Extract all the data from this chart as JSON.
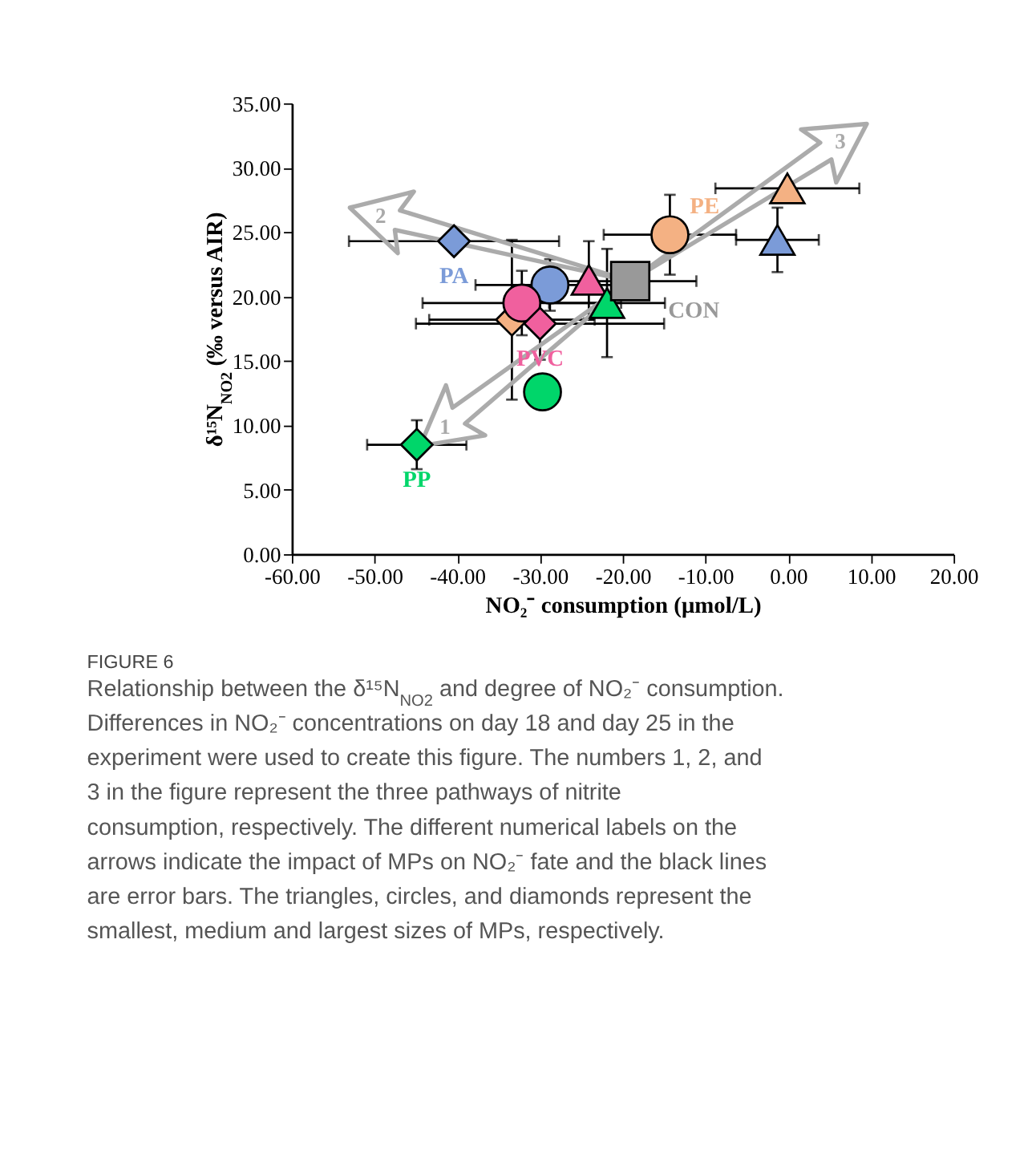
{
  "chart_data": {
    "type": "scatter",
    "xlabel": "NO₂⁻ consumption (μmol/L)",
    "ylabel": "δ¹⁵N$_{NO2}$ (‰ versus AIR)",
    "title": "FIGURE 6",
    "annotations": [
      "1",
      "2",
      "3",
      "Relationship between the δ¹⁵N$_{NO2}$ and degree of NO₂⁻ consumption. Differences in NO₂⁻ concentrations on day 18 and day 25 in the experiment were used to create this figure. The numbers 1, 2, and 3 in the figure represent the three pathways of nitrite consumption, respectively. The different numerical labels on the arrows indicate the impact of MPs on NO₂⁻ fate and the black lines are error bars. The triangles, circles, and diamonds represent the smallest, medium and largest sizes of MPs, respectively."
    ],
    "xlim": [
      -60,
      20
    ],
    "xticks": [
      {
        "value": -60,
        "label": "-60.00"
      },
      {
        "value": -50,
        "label": "-50.00"
      },
      {
        "value": -40,
        "label": "-40.00"
      },
      {
        "value": -30,
        "label": "-30.00"
      },
      {
        "value": -20,
        "label": "-20.00"
      },
      {
        "value": -10,
        "label": "-10.00"
      },
      {
        "value": 0,
        "label": "0.00"
      },
      {
        "value": 10,
        "label": "10.00"
      },
      {
        "value": 20,
        "label": "20.00"
      }
    ],
    "ylim": [
      0,
      35
    ],
    "yticks": [
      {
        "value": 0,
        "label": "0.00"
      },
      {
        "value": 5,
        "label": "5.00"
      },
      {
        "value": 10,
        "label": "10.00"
      },
      {
        "value": 15,
        "label": "15.00"
      },
      {
        "value": 20,
        "label": "20.00"
      },
      {
        "value": 25,
        "label": "25.00"
      },
      {
        "value": 30,
        "label": "30.00"
      },
      {
        "value": 35,
        "label": "35.00"
      }
    ],
    "grid": false,
    "legend": false,
    "series": [
      {
        "name": "PA",
        "color": "#7b9bd8",
        "marker": "diamond",
        "x": [
          -40.4
        ],
        "values": [
          24.3
        ],
        "xerrors": [
          12.7
        ]
      },
      {
        "color": "#7b9bd8",
        "marker": "circle",
        "x": [
          -28.8
        ],
        "values": [
          20.9
        ],
        "xerrors": [
          9
        ],
        "errors": [
          2
        ]
      },
      {
        "color": "#7b9bd8",
        "marker": "triangle",
        "x": [
          -1.3
        ],
        "values": [
          24.4
        ],
        "xerrors": [
          5
        ],
        "errors": [
          2.5
        ]
      },
      {
        "name": "PE",
        "color": "#f4b183",
        "marker": "circle",
        "x": [
          -14.3
        ],
        "values": [
          24.8
        ],
        "xerrors": [
          8
        ],
        "errors": [
          3.1
        ]
      },
      {
        "color": "#f4b183",
        "marker": "triangle",
        "x": [
          -0.1
        ],
        "values": [
          28.4
        ],
        "xerrors": [
          8.7
        ]
      },
      {
        "color": "#f4b183",
        "marker": "diamond",
        "x": [
          -33.4
        ],
        "values": [
          18.2
        ],
        "xerrors": [
          10
        ],
        "errors": [
          6.2
        ]
      },
      {
        "color": "#f0609e",
        "marker": "triangle",
        "x": [
          -24.1
        ],
        "values": [
          21.3
        ],
        "errors": [
          3
        ]
      },
      {
        "color": "#f0609e",
        "marker": "circle",
        "x": [
          -32.2
        ],
        "values": [
          19.5
        ],
        "xerrors": [
          12
        ],
        "errors": [
          2.5
        ]
      },
      {
        "name": "PVC",
        "color": "#f0609e",
        "marker": "diamond",
        "x": [
          -30
        ],
        "values": [
          17.9
        ],
        "xerrors": [
          15
        ],
        "errors": [
          2.8
        ]
      },
      {
        "color": "#00d66a",
        "marker": "triangle",
        "x": [
          -21.9
        ],
        "values": [
          19.5
        ],
        "xerrors": [
          7
        ],
        "errors": [
          4.2
        ]
      },
      {
        "color": "#00d66a",
        "marker": "circle",
        "x": [
          -29.7
        ],
        "values": [
          12.6
        ]
      },
      {
        "name": "PP",
        "color": "#00d66a",
        "marker": "diamond",
        "x": [
          -44.9
        ],
        "values": [
          8.5
        ],
        "xerrors": [
          6
        ],
        "errors": [
          1.9
        ]
      },
      {
        "name": "CON",
        "color": "#999999",
        "marker": "square",
        "x": [
          -19.1
        ],
        "values": [
          21.2
        ],
        "xerrors": [
          8
        ]
      }
    ]
  }
}
